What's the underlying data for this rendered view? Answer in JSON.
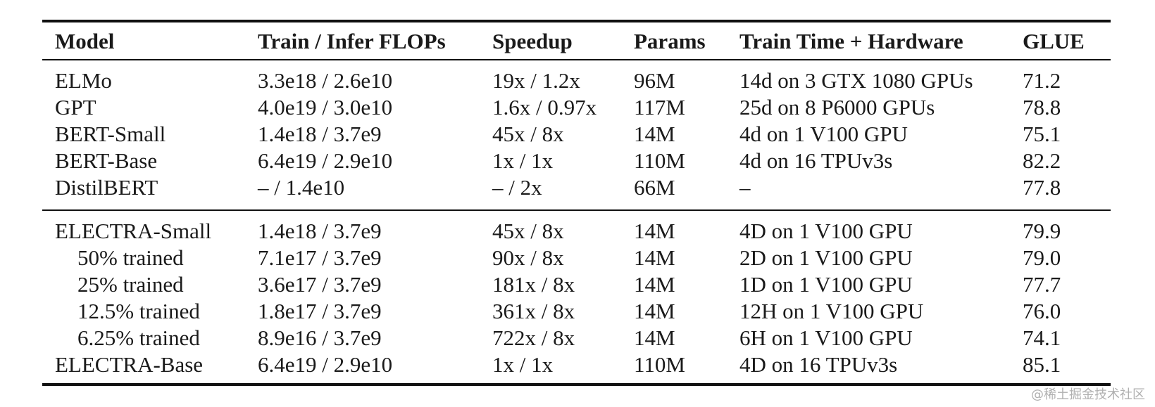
{
  "table": {
    "headers": [
      "Model",
      "Train / Infer FLOPs",
      "Speedup",
      "Params",
      "Train Time + Hardware",
      "GLUE"
    ],
    "group1": [
      [
        "ELMo",
        "3.3e18 / 2.6e10",
        "19x / 1.2x",
        "96M",
        "14d on 3 GTX 1080 GPUs",
        "71.2"
      ],
      [
        "GPT",
        "4.0e19 / 3.0e10",
        "1.6x / 0.97x",
        "117M",
        "25d on 8 P6000 GPUs",
        "78.8"
      ],
      [
        "BERT-Small",
        "1.4e18 / 3.7e9",
        "45x / 8x",
        "14M",
        "4d on 1 V100 GPU",
        "75.1"
      ],
      [
        "BERT-Base",
        "6.4e19 / 2.9e10",
        "1x / 1x",
        "110M",
        "4d on 16 TPUv3s",
        "82.2"
      ],
      [
        "DistilBERT",
        "– / 1.4e10",
        "– / 2x",
        "66M",
        "–",
        "77.8"
      ]
    ],
    "group2": [
      [
        "ELECTRA-Small",
        "1.4e18 / 3.7e9",
        "45x / 8x",
        "14M",
        "4D on 1 V100 GPU",
        "79.9"
      ],
      [
        "50% trained",
        "7.1e17 / 3.7e9",
        "90x / 8x",
        "14M",
        "2D on 1 V100 GPU",
        "79.0"
      ],
      [
        "25% trained",
        "3.6e17 / 3.7e9",
        "181x / 8x",
        "14M",
        "1D on 1 V100 GPU",
        "77.7"
      ],
      [
        "12.5% trained",
        "1.8e17 / 3.7e9",
        "361x / 8x",
        "14M",
        "12H on 1 V100 GPU",
        "76.0"
      ],
      [
        "6.25% trained",
        "8.9e16 / 3.7e9",
        "722x / 8x",
        "14M",
        "6H on 1 V100 GPU",
        "74.1"
      ],
      [
        "ELECTRA-Base",
        "6.4e19 / 2.9e10",
        "1x / 1x",
        "110M",
        "4D on 16 TPUv3s",
        "85.1"
      ]
    ]
  },
  "watermark": "@稀土掘金技术社区"
}
